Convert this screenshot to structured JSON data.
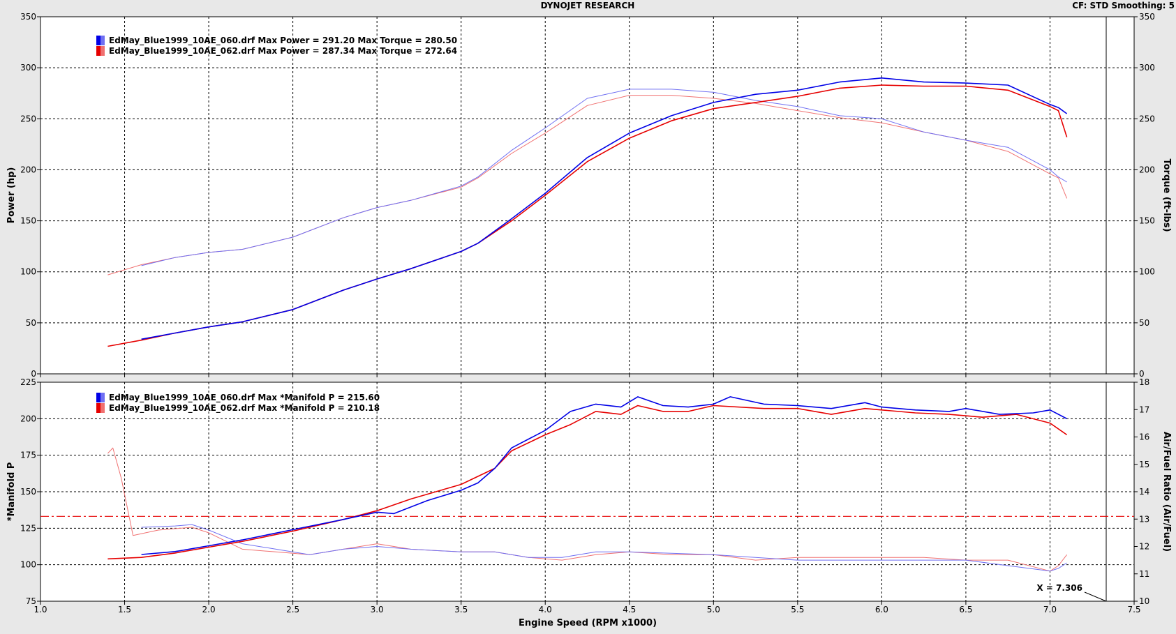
{
  "header": {
    "title": "DYNOJET RESEARCH",
    "corner_info": "CF: STD  Smoothing: 5"
  },
  "colors": {
    "run1": "#0000e6",
    "run1_light": "#6f6ff2",
    "run2": "#e60000",
    "run2_light": "#f07070",
    "frame_bg": "#e8e8e8",
    "plot_bg": "#ffffff"
  },
  "cursor_label": "X = 7.306",
  "chart_data": [
    {
      "type": "line",
      "title": "",
      "xlabel": "",
      "ylabel": "Power (hp)",
      "y2label": "Torque (ft-lbs)",
      "xlim": [
        1.0,
        7.5
      ],
      "ylim": [
        0,
        350
      ],
      "y2lim": [
        0,
        350
      ],
      "xticks": [
        "1.0",
        "1.5",
        "2.0",
        "2.5",
        "3.0",
        "3.5",
        "4.0",
        "4.5",
        "5.0",
        "5.5",
        "6.0",
        "6.5",
        "7.0",
        "7.5"
      ],
      "yticks": [
        "0",
        "50",
        "100",
        "150",
        "200",
        "250",
        "300",
        "350"
      ],
      "y2ticks": [
        "0",
        "50",
        "100",
        "150",
        "200",
        "250",
        "300",
        "350"
      ],
      "grid": true,
      "legend_position": "top-left",
      "legend": [
        {
          "text": "EdMay_Blue1999_10AE_060.drf Max Power = 291.20 Max Torque = 280.50",
          "color": "#0000e6"
        },
        {
          "text": "EdMay_Blue1999_10AE_062.drf Max Power = 287.34 Max Torque = 272.64",
          "color": "#e60000"
        }
      ],
      "series": [
        {
          "role": "power",
          "run": 1,
          "color": "#0000e6",
          "width": 1.6,
          "x": [
            1.6,
            1.8,
            2.0,
            2.2,
            2.5,
            2.8,
            3.0,
            3.2,
            3.5,
            3.6,
            3.8,
            4.0,
            4.25,
            4.5,
            4.75,
            5.0,
            5.25,
            5.5,
            5.75,
            6.0,
            6.25,
            6.5,
            6.75,
            7.0,
            7.05,
            7.1
          ],
          "y": [
            34,
            40,
            46,
            51,
            63,
            82,
            93,
            103,
            120,
            128,
            152,
            177,
            212,
            236,
            253,
            266,
            274,
            278,
            286,
            290,
            286,
            285,
            283,
            264,
            261,
            255
          ]
        },
        {
          "role": "power",
          "run": 2,
          "color": "#e60000",
          "width": 1.6,
          "x": [
            1.4,
            1.6,
            1.8,
            2.0,
            2.2,
            2.5,
            2.8,
            3.0,
            3.2,
            3.5,
            3.6,
            3.8,
            4.0,
            4.25,
            4.5,
            4.75,
            5.0,
            5.25,
            5.5,
            5.75,
            6.0,
            6.25,
            6.5,
            6.75,
            7.0,
            7.05,
            7.1
          ],
          "y": [
            27,
            33,
            40,
            46,
            51,
            63,
            82,
            93,
            103,
            120,
            128,
            150,
            175,
            208,
            231,
            248,
            260,
            266,
            272,
            280,
            283,
            282,
            282,
            278,
            262,
            258,
            232
          ]
        },
        {
          "role": "torque",
          "run": 1,
          "color": "#6f6ff2",
          "width": 1,
          "x": [
            1.6,
            1.8,
            2.0,
            2.2,
            2.5,
            2.8,
            3.0,
            3.2,
            3.5,
            3.6,
            3.8,
            4.0,
            4.25,
            4.5,
            4.75,
            5.0,
            5.25,
            5.5,
            5.75,
            6.0,
            6.25,
            6.5,
            6.75,
            7.0,
            7.05,
            7.1
          ],
          "y": [
            106,
            114,
            119,
            122,
            134,
            153,
            163,
            170,
            184,
            193,
            219,
            241,
            270,
            279,
            279,
            276,
            268,
            262,
            253,
            250,
            237,
            229,
            222,
            200,
            193,
            188
          ]
        },
        {
          "role": "torque",
          "run": 2,
          "color": "#f07070",
          "width": 1,
          "x": [
            1.4,
            1.6,
            1.8,
            2.0,
            2.2,
            2.5,
            2.8,
            3.0,
            3.2,
            3.5,
            3.6,
            3.8,
            4.0,
            4.25,
            4.5,
            4.75,
            5.0,
            5.25,
            5.5,
            5.75,
            6.0,
            6.25,
            6.5,
            6.75,
            7.0,
            7.05,
            7.1
          ],
          "y": [
            97,
            107,
            114,
            119,
            122,
            134,
            153,
            163,
            170,
            183,
            192,
            216,
            236,
            263,
            273,
            273,
            270,
            265,
            258,
            251,
            246,
            237,
            229,
            218,
            196,
            192,
            172
          ]
        }
      ]
    },
    {
      "type": "line",
      "title": "",
      "xlabel": "Engine Speed (RPM x1000)",
      "ylabel": "*Manifold P",
      "y2label": "Air/Fuel Ratio (Air/Fuel)",
      "xlim": [
        1.0,
        7.5
      ],
      "ylim": [
        75,
        225
      ],
      "y2lim": [
        10,
        18
      ],
      "xticks": [
        "1.0",
        "1.5",
        "2.0",
        "2.5",
        "3.0",
        "3.5",
        "4.0",
        "4.5",
        "5.0",
        "5.5",
        "6.0",
        "6.5",
        "7.0",
        "7.5"
      ],
      "yticks": [
        "75",
        "100",
        "125",
        "150",
        "175",
        "200",
        "225"
      ],
      "y2ticks": [
        "10",
        "11",
        "12",
        "13",
        "14",
        "15",
        "16",
        "17",
        "18"
      ],
      "grid": true,
      "legend_position": "top-left",
      "legend": [
        {
          "text": "EdMay_Blue1999_10AE_060.drf Max *Manifold P = 215.60",
          "color": "#0000e6"
        },
        {
          "text": "EdMay_Blue1999_10AE_062.drf Max *Manifold P = 210.18",
          "color": "#e60000"
        }
      ],
      "reference_line": {
        "axis": "y2",
        "value": 13.1,
        "color": "#e60000",
        "style": "dash-dot"
      },
      "series": [
        {
          "role": "manifold",
          "run": 1,
          "color": "#0000e6",
          "width": 1.6,
          "axis": "y",
          "x": [
            1.6,
            1.8,
            2.0,
            2.2,
            2.5,
            2.8,
            3.0,
            3.1,
            3.3,
            3.5,
            3.6,
            3.7,
            3.8,
            4.0,
            4.15,
            4.3,
            4.45,
            4.55,
            4.7,
            4.85,
            5.0,
            5.1,
            5.3,
            5.5,
            5.7,
            5.9,
            6.0,
            6.2,
            6.4,
            6.5,
            6.7,
            6.9,
            7.0,
            7.1
          ],
          "y": [
            107,
            109,
            113,
            117,
            124,
            131,
            136,
            135,
            144,
            151,
            156,
            166,
            180,
            192,
            205,
            210,
            208,
            215,
            209,
            208,
            210,
            215,
            210,
            209,
            207,
            211,
            208,
            206,
            205,
            207,
            203,
            204,
            206,
            200
          ]
        },
        {
          "role": "manifold",
          "run": 2,
          "color": "#e60000",
          "width": 1.6,
          "axis": "y",
          "x": [
            1.4,
            1.6,
            1.8,
            2.0,
            2.2,
            2.5,
            2.8,
            3.0,
            3.2,
            3.5,
            3.7,
            3.8,
            4.0,
            4.15,
            4.3,
            4.45,
            4.55,
            4.7,
            4.85,
            5.0,
            5.3,
            5.5,
            5.7,
            5.9,
            6.0,
            6.2,
            6.4,
            6.6,
            6.8,
            7.0,
            7.1
          ],
          "y": [
            104,
            105,
            108,
            112,
            116,
            123,
            131,
            137,
            145,
            155,
            166,
            178,
            189,
            196,
            205,
            203,
            209,
            205,
            205,
            209,
            207,
            207,
            203,
            207,
            206,
            204,
            203,
            201,
            203,
            197,
            189
          ]
        },
        {
          "role": "afr",
          "run": 1,
          "color": "#6f6ff2",
          "width": 1,
          "axis": "y2",
          "x": [
            1.6,
            1.8,
            1.9,
            2.0,
            2.2,
            2.4,
            2.6,
            2.8,
            3.0,
            3.2,
            3.5,
            3.7,
            3.9,
            4.1,
            4.3,
            4.5,
            4.75,
            5.0,
            5.25,
            5.5,
            5.75,
            6.0,
            6.25,
            6.5,
            6.75,
            7.0,
            7.05,
            7.1
          ],
          "y": [
            12.7,
            12.75,
            12.8,
            12.6,
            12.1,
            11.9,
            11.7,
            11.9,
            12.0,
            11.9,
            11.8,
            11.8,
            11.6,
            11.6,
            11.8,
            11.8,
            11.75,
            11.7,
            11.6,
            11.5,
            11.5,
            11.5,
            11.5,
            11.5,
            11.3,
            11.1,
            11.2,
            11.4
          ]
        },
        {
          "role": "afr",
          "run": 2,
          "color": "#f07070",
          "width": 1,
          "axis": "y2",
          "x": [
            1.4,
            1.43,
            1.48,
            1.55,
            1.7,
            1.9,
            2.0,
            2.2,
            2.4,
            2.6,
            2.8,
            3.0,
            3.2,
            3.5,
            3.7,
            3.9,
            4.1,
            4.3,
            4.5,
            4.75,
            5.0,
            5.25,
            5.5,
            5.75,
            6.0,
            6.25,
            6.5,
            6.75,
            7.0,
            7.05,
            7.1
          ],
          "y": [
            15.4,
            15.6,
            14.5,
            12.4,
            12.6,
            12.7,
            12.5,
            11.9,
            11.8,
            11.7,
            11.9,
            12.1,
            11.9,
            11.8,
            11.8,
            11.6,
            11.5,
            11.7,
            11.8,
            11.7,
            11.7,
            11.5,
            11.6,
            11.6,
            11.6,
            11.6,
            11.5,
            11.5,
            11.1,
            11.3,
            11.7
          ]
        }
      ]
    }
  ]
}
